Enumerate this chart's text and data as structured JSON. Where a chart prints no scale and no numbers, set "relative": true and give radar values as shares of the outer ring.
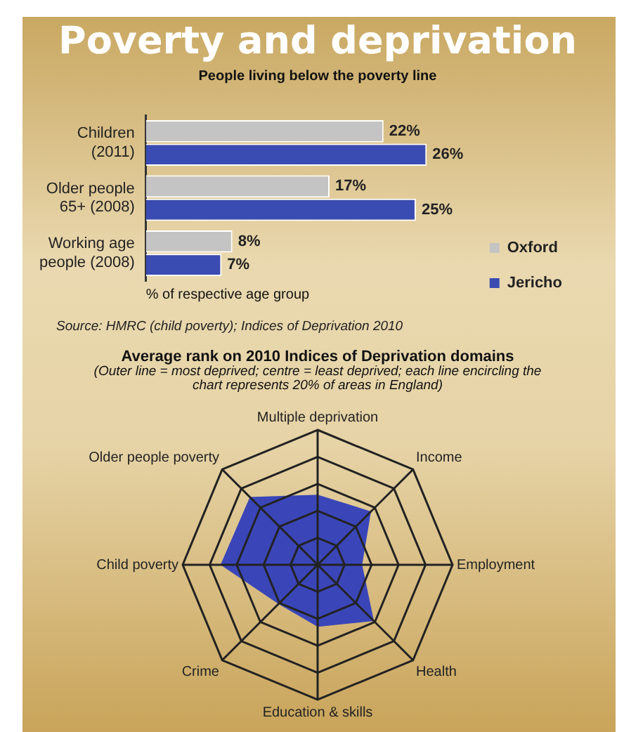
{
  "chart_data": [
    {
      "type": "bar",
      "orientation": "horizontal",
      "title": "Poverty and deprivation",
      "subtitle": "People living below the poverty line",
      "xlabel": "% of respective age group",
      "categories": [
        "Children (2011)",
        "Older people 65+ (2008)",
        "Working age people (2008)"
      ],
      "series": [
        {
          "name": "Oxford",
          "color": "#c4c4c4",
          "values": [
            22,
            17,
            8
          ],
          "value_labels": [
            "22%",
            "17%",
            "8%"
          ]
        },
        {
          "name": "Jericho",
          "color": "#3a4bb2",
          "values": [
            26,
            25,
            7
          ],
          "value_labels": [
            "26%",
            "25%",
            "7%"
          ]
        }
      ],
      "legend": "bottom right",
      "grid": false,
      "tick_labels": "y",
      "annotations": [
        "Source: HMRC (child poverty); Indices of Deprivation 2010"
      ]
    },
    {
      "type": "radar",
      "title": "Average rank on 2010 Indices of Deprivation domains",
      "subtitle": "(Outer line = most deprived; centre = least deprived; each line encircling the chart represents 20% of areas in England)",
      "categories": [
        "Multiple deprivation",
        "Income",
        "Employment",
        "Health",
        "Education & skills",
        "Crime",
        "Child poverty",
        "Older people poverty"
      ],
      "relative": true,
      "series": [
        {
          "color": "#3a46b8",
          "values": [
            0.52,
            0.56,
            0.33,
            0.59,
            0.46,
            0.41,
            0.72,
            0.71
          ]
        }
      ],
      "grid": true,
      "legend": false,
      "marker": "none"
    }
  ]
}
